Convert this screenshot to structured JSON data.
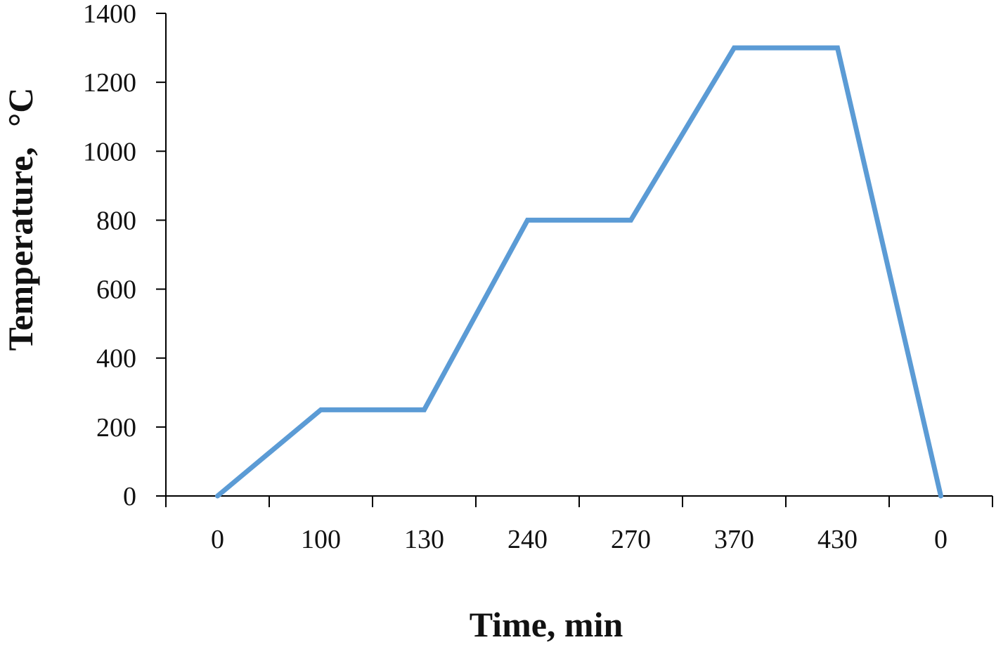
{
  "chart_data": {
    "type": "line",
    "title": "",
    "xlabel": "Time, min",
    "ylabel": "Temperature,",
    "ylabel_unit": "°C",
    "categories": [
      "0",
      "100",
      "130",
      "240",
      "270",
      "370",
      "430",
      "0"
    ],
    "ylim": [
      0,
      1400
    ],
    "yticks": [
      0,
      200,
      400,
      600,
      800,
      1000,
      1200,
      1400
    ],
    "grid": false,
    "legend": "none",
    "series": [
      {
        "values": [
          0,
          250,
          250,
          800,
          800,
          1300,
          1300,
          0
        ],
        "color": "#5b9bd5"
      }
    ]
  }
}
